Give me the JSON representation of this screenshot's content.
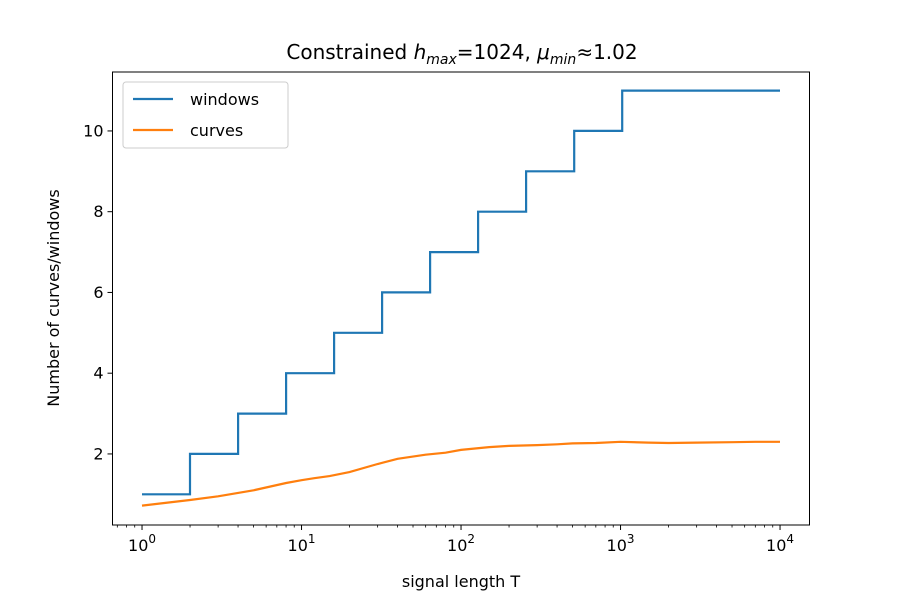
{
  "chart_data": {
    "type": "line",
    "title": {
      "prefix": "Constrained ",
      "h_sym": "h",
      "h_sub": "max",
      "h_value": "=1024, ",
      "mu_sym": "μ",
      "mu_sub": "min",
      "mu_value": "≈1.02"
    },
    "xlabel": "signal length T",
    "ylabel": "Number of curves/windows",
    "xscale": "log",
    "xlim": [
      0.653,
      15300
    ],
    "ylim": [
      0.24,
      11.46
    ],
    "x_ticks": [
      {
        "base": "10",
        "exp": "0",
        "value": 1
      },
      {
        "base": "10",
        "exp": "1",
        "value": 10
      },
      {
        "base": "10",
        "exp": "2",
        "value": 100
      },
      {
        "base": "10",
        "exp": "3",
        "value": 1000
      },
      {
        "base": "10",
        "exp": "4",
        "value": 10000
      }
    ],
    "y_ticks": [
      {
        "label": "2",
        "value": 2
      },
      {
        "label": "4",
        "value": 4
      },
      {
        "label": "6",
        "value": 6
      },
      {
        "label": "8",
        "value": 8
      },
      {
        "label": "10",
        "value": 10
      }
    ],
    "legend_position": "top-left",
    "series": [
      {
        "name": "windows",
        "color": "#1f77b4",
        "style": "step",
        "x": [
          1,
          2,
          4,
          8,
          16,
          32,
          64,
          128,
          256,
          512,
          1024,
          10000
        ],
        "y": [
          1,
          2,
          3,
          4,
          5,
          6,
          7,
          8,
          9,
          10,
          11,
          11
        ]
      },
      {
        "name": "curves",
        "color": "#ff7f0e",
        "style": "line",
        "x": [
          1,
          2,
          3,
          5,
          8,
          10,
          12,
          15,
          20,
          30,
          40,
          60,
          80,
          100,
          150,
          200,
          300,
          400,
          500,
          700,
          1000,
          1500,
          2000,
          3000,
          5000,
          7000,
          10000
        ],
        "y": [
          0.72,
          0.86,
          0.95,
          1.1,
          1.28,
          1.35,
          1.4,
          1.45,
          1.55,
          1.75,
          1.88,
          1.98,
          2.03,
          2.1,
          2.17,
          2.2,
          2.22,
          2.24,
          2.26,
          2.27,
          2.3,
          2.28,
          2.27,
          2.28,
          2.29,
          2.3,
          2.3
        ]
      }
    ]
  }
}
